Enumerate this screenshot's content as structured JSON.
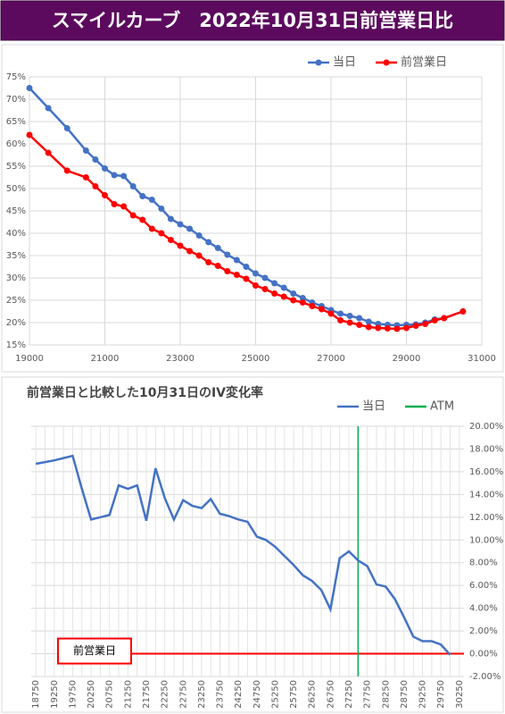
{
  "title": "スマイルカーブ　2022年10月31日前営業日比",
  "chart_data": [
    {
      "type": "line",
      "markers": true,
      "x": [
        19000,
        19500,
        20000,
        20500,
        20750,
        21000,
        21250,
        21500,
        21750,
        22000,
        22250,
        22500,
        22750,
        23000,
        23250,
        23500,
        23750,
        24000,
        24250,
        24500,
        24750,
        25000,
        25250,
        25500,
        25750,
        26000,
        26250,
        26500,
        26750,
        27000,
        27250,
        27500,
        27750,
        28000,
        28250,
        28500,
        28750,
        29000,
        29250,
        29500,
        29750,
        30000,
        30500
      ],
      "series": [
        {
          "name": "当日",
          "color": "#4472c4",
          "values": [
            72.5,
            68,
            63.5,
            58.5,
            56.5,
            54.5,
            53,
            52.8,
            50.5,
            48.3,
            47.5,
            45.5,
            43.2,
            42,
            41,
            39.5,
            38,
            36.7,
            35.2,
            34,
            32.5,
            31,
            30,
            28.8,
            27.8,
            26.5,
            25.5,
            24.5,
            23.7,
            22.8,
            22,
            21.5,
            21,
            20.2,
            19.7,
            19.5,
            19.4,
            19.5,
            19.6,
            20,
            20.7,
            21,
            22.5
          ]
        },
        {
          "name": "前営業日",
          "color": "#ff0000",
          "values": [
            62,
            58,
            54,
            52.5,
            50.5,
            48.5,
            46.5,
            46,
            44,
            43,
            41,
            40,
            38.5,
            37.2,
            36,
            35,
            33.5,
            32.7,
            31.5,
            30.7,
            29.8,
            28.3,
            27.5,
            26.5,
            25.8,
            25,
            24.5,
            23.7,
            23,
            22,
            20.5,
            20,
            19.5,
            19,
            18.8,
            18.7,
            18.6,
            18.8,
            19.3,
            19.7,
            20.5,
            21,
            22.5
          ]
        }
      ],
      "xlim": [
        19000,
        31000
      ],
      "xticks": [
        19000,
        21000,
        23000,
        25000,
        27000,
        29000,
        31000
      ],
      "ylim": [
        15,
        75
      ],
      "yticks": [
        {
          "value": 15,
          "label": "15%"
        },
        {
          "value": 20,
          "label": "20%"
        },
        {
          "value": 25,
          "label": "25%"
        },
        {
          "value": 30,
          "label": "30%"
        },
        {
          "value": 35,
          "label": "35%"
        },
        {
          "value": 40,
          "label": "40%"
        },
        {
          "value": 45,
          "label": "45%"
        },
        {
          "value": 50,
          "label": "50%"
        },
        {
          "value": 55,
          "label": "55%"
        },
        {
          "value": 60,
          "label": "60%"
        },
        {
          "value": 65,
          "label": "65%"
        },
        {
          "value": 70,
          "label": "70%"
        },
        {
          "value": 75,
          "label": "75%"
        }
      ],
      "grid": true,
      "legend": "top-right"
    },
    {
      "type": "line",
      "markers": false,
      "title": "前営業日と比較した10月31日のIV変化率",
      "x": [
        18750,
        19000,
        19250,
        19500,
        19750,
        20000,
        20250,
        20500,
        20750,
        21000,
        21250,
        21500,
        21750,
        22000,
        22250,
        22500,
        22750,
        23000,
        23250,
        23500,
        23750,
        24000,
        24250,
        24500,
        24750,
        25000,
        25250,
        25500,
        25750,
        26000,
        26250,
        26500,
        26750,
        27000,
        27250,
        27500,
        27750,
        28000,
        28250,
        28500,
        28750,
        29000,
        29250,
        29500,
        29750,
        30000,
        30250
      ],
      "series": [
        {
          "name": "当日",
          "color": "#4472c4",
          "values": [
            16.7,
            16.85,
            17,
            17.2,
            17.4,
            14.5,
            11.8,
            12,
            12.2,
            14.8,
            14.5,
            14.8,
            11.7,
            16.3,
            13.7,
            11.8,
            13.5,
            13,
            12.8,
            13.6,
            12.3,
            12.1,
            11.8,
            11.6,
            10.3,
            10,
            9.4,
            8.6,
            7.8,
            6.9,
            6.4,
            5.6,
            3.9,
            8.4,
            9,
            8.2,
            7.7,
            6.1,
            5.9,
            4.8,
            3.2,
            1.5,
            1.1,
            1.1,
            0.8,
            -0.1,
            null
          ]
        }
      ],
      "vline": {
        "name": "ATM",
        "color": "#00b050",
        "value": 27500
      },
      "hline": {
        "label": "前営業日",
        "color": "#ff0000",
        "value": 0
      },
      "xlim": [
        18625,
        30375
      ],
      "xticks": [
        18750,
        19250,
        19750,
        20250,
        20750,
        21250,
        21750,
        22250,
        22750,
        23250,
        23750,
        24250,
        24750,
        25250,
        25750,
        26250,
        26750,
        27250,
        27750,
        28250,
        28750,
        29250,
        29750,
        30250
      ],
      "ylim": [
        -2,
        20
      ],
      "yticks": [
        {
          "value": -2,
          "label": "-2.00%"
        },
        {
          "value": 0,
          "label": "0.00%"
        },
        {
          "value": 2,
          "label": "2.00%"
        },
        {
          "value": 4,
          "label": "4.00%"
        },
        {
          "value": 6,
          "label": "6.00%"
        },
        {
          "value": 8,
          "label": "8.00%"
        },
        {
          "value": 10,
          "label": "10.00%"
        },
        {
          "value": 12,
          "label": "12.00%"
        },
        {
          "value": 14,
          "label": "14.00%"
        },
        {
          "value": 16,
          "label": "16.00%"
        },
        {
          "value": 18,
          "label": "18.00%"
        },
        {
          "value": 20,
          "label": "20.00%"
        }
      ],
      "grid": true,
      "legend": "top-right",
      "axis_side": "right"
    }
  ]
}
